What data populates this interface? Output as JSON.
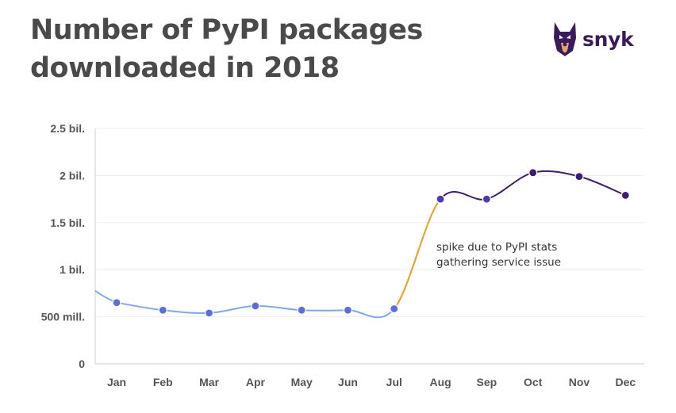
{
  "title_line1": "Number of PyPI packages",
  "title_line2": "downloaded in 2018",
  "logo_text": "snyk",
  "chart_data": {
    "type": "line",
    "title": "Number of PyPI packages downloaded in 2018",
    "categories": [
      "Jan",
      "Feb",
      "Mar",
      "Apr",
      "May",
      "Jun",
      "Jul",
      "Aug",
      "Sep",
      "Oct",
      "Nov",
      "Dec"
    ],
    "values": [
      650000000,
      570000000,
      540000000,
      615000000,
      570000000,
      570000000,
      585000000,
      1750000000,
      1750000000,
      2030000000,
      1990000000,
      1790000000
    ],
    "ylim": [
      0,
      2500000000
    ],
    "yticks": [
      0,
      500000000,
      1000000000,
      1500000000,
      2000000000,
      2500000000
    ],
    "ytick_labels": [
      "0",
      "500 mill.",
      "1 bil.",
      "1.5 bil.",
      "2 bil.",
      "2.5 bil."
    ],
    "xlabel": "",
    "ylabel": "",
    "grid": true,
    "series_colors": {
      "normal": "#7fa8ec",
      "spike": "#e0a63a",
      "high": "#3d1e6d"
    },
    "annotation": {
      "line1": "spike due to PyPI stats",
      "line2": "gathering service issue"
    }
  }
}
